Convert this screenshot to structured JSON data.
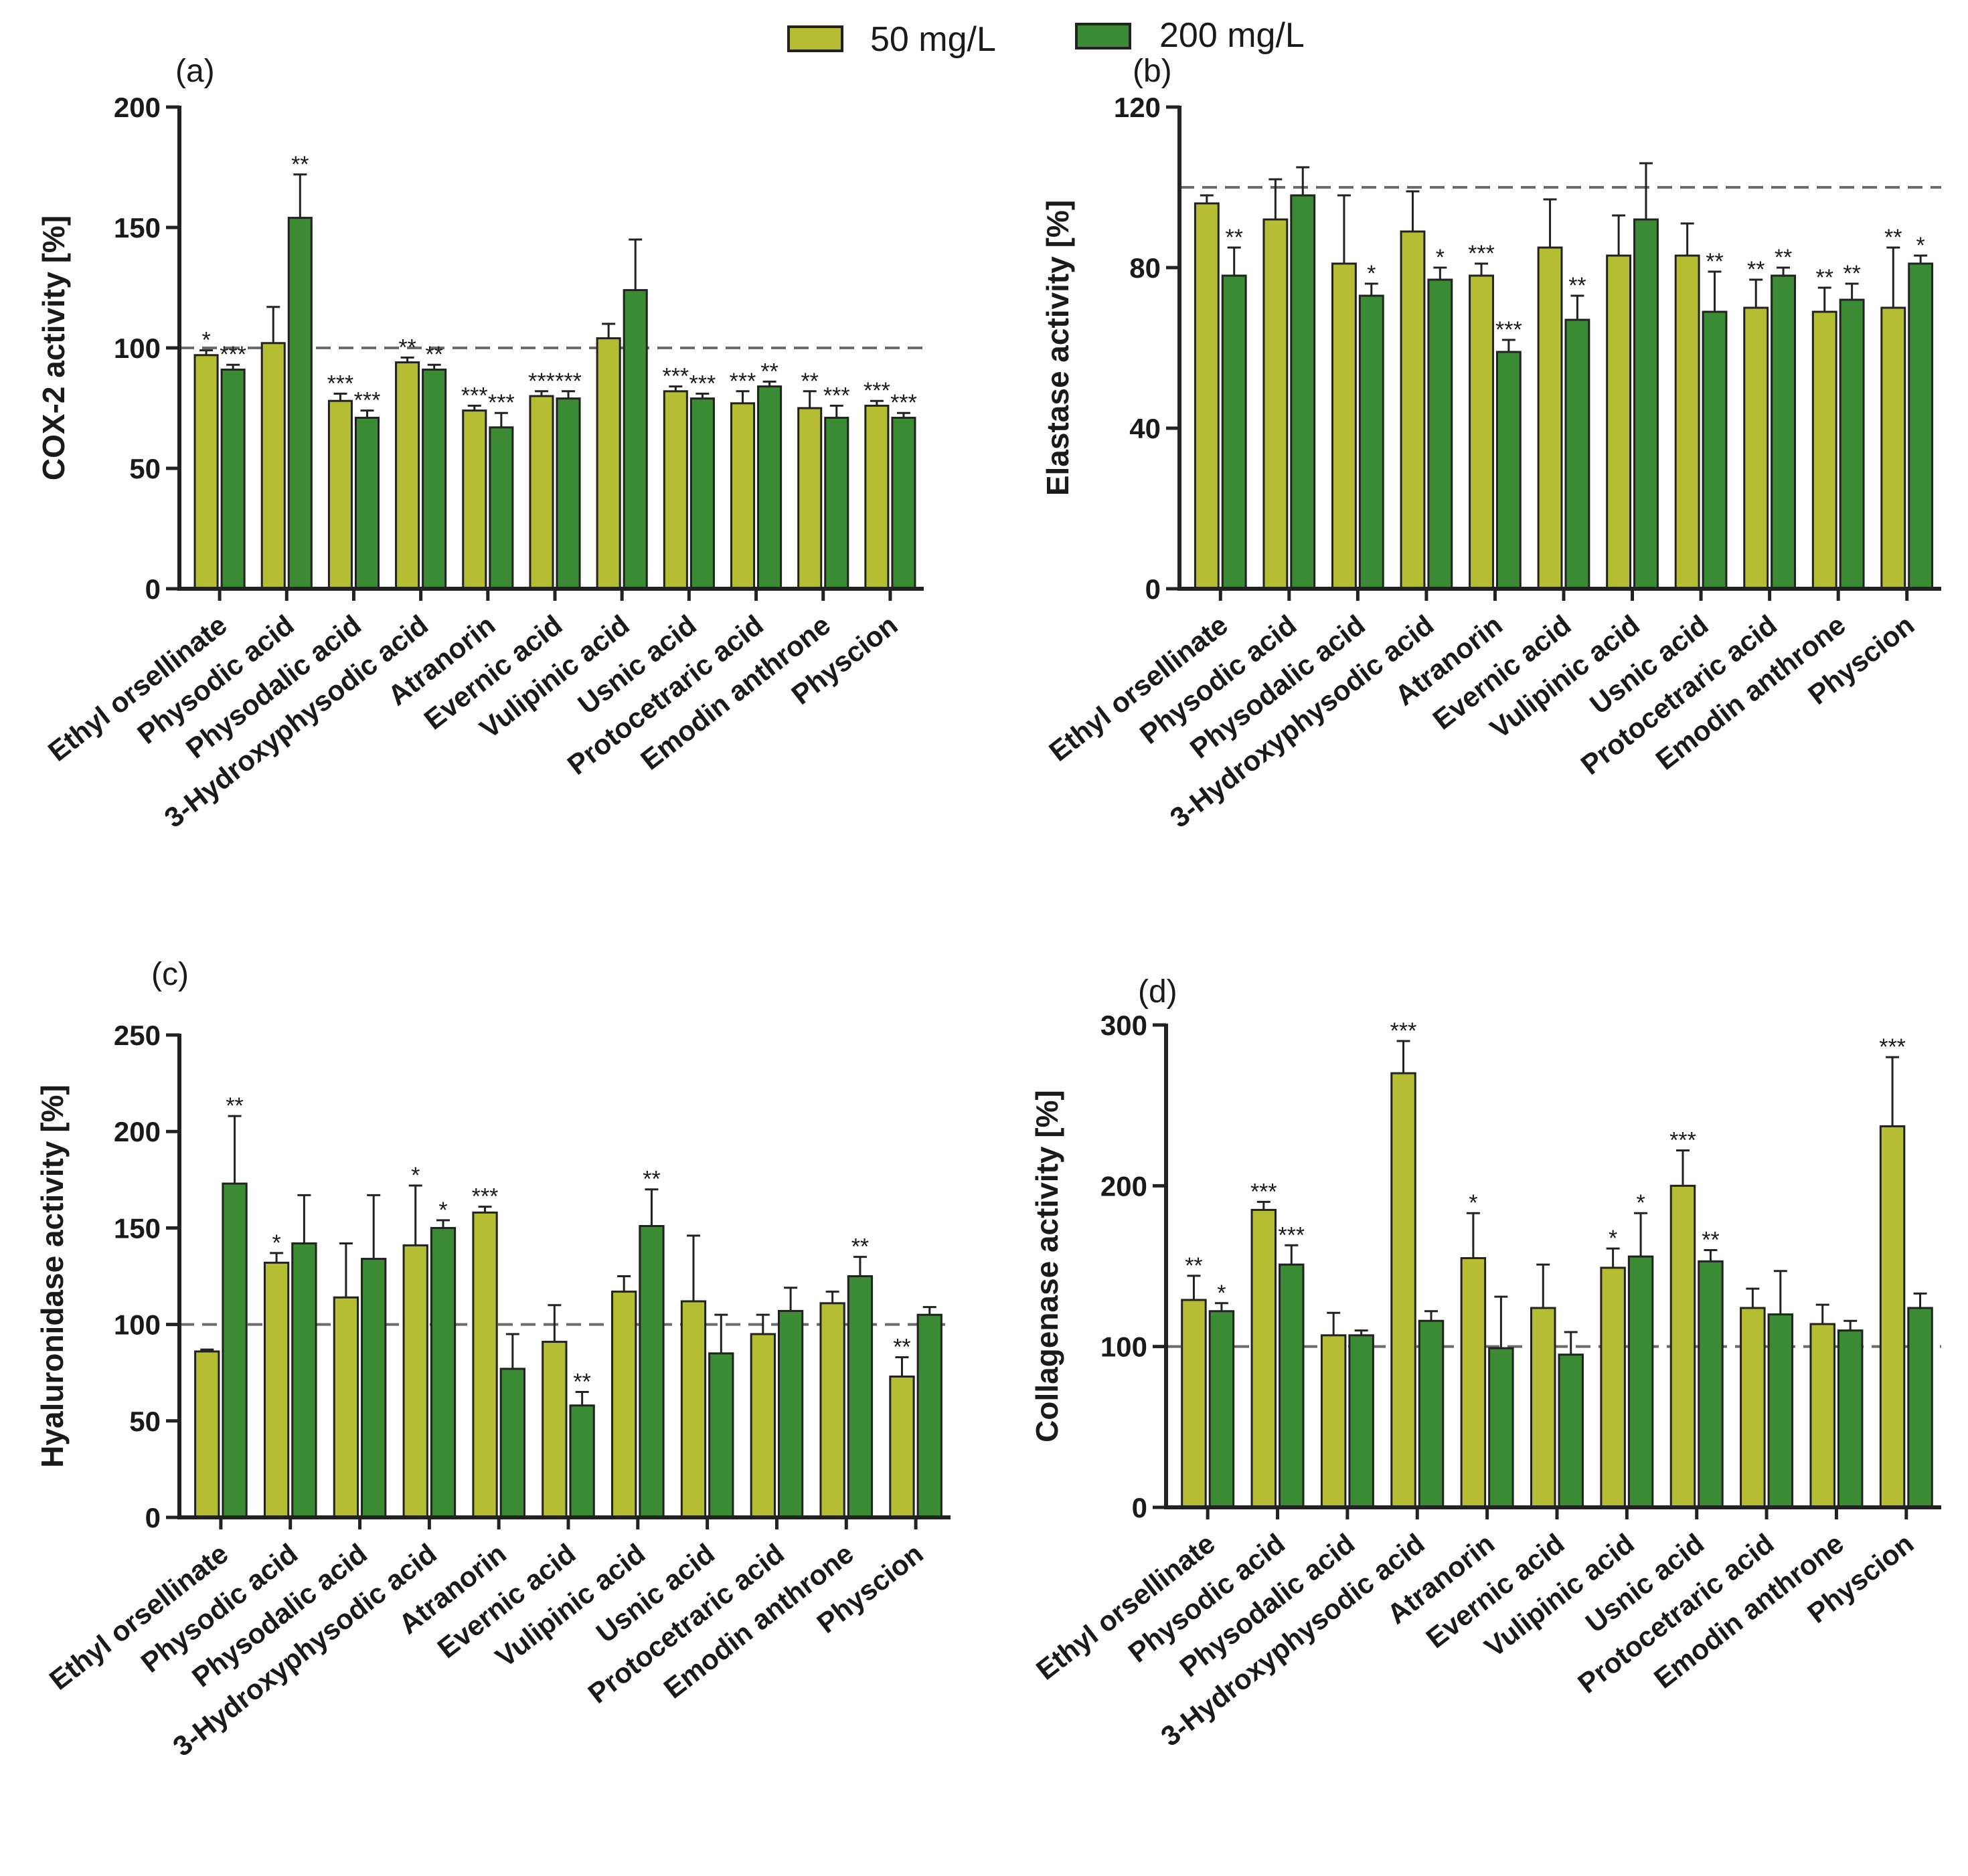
{
  "legend": {
    "items": [
      {
        "label": "50 mg/L",
        "color": "#b5bd32"
      },
      {
        "label": "200 mg/L",
        "color": "#3b8a34"
      }
    ]
  },
  "chart_data": [
    {
      "type": "bar",
      "panel": "(a)",
      "ylabel": "COX-2 activity [%]",
      "ylim": [
        0,
        200
      ],
      "yticks": [
        0,
        50,
        100,
        150,
        200
      ],
      "reference_line": 100,
      "categories": [
        "Ethyl orsellinate",
        "Physodic acid",
        "Physodalic acid",
        "3-Hydroxyphysodic acid",
        "Atranorin",
        "Evernic acid",
        "Vulipinic acid",
        "Usnic acid",
        "Protocetraric acid",
        "Emodin anthrone",
        "Physcion"
      ],
      "series": [
        {
          "name": "50 mg/L",
          "values": [
            97,
            102,
            78,
            94,
            74,
            80,
            104,
            82,
            77,
            75,
            76
          ],
          "errors": [
            2,
            15,
            3,
            2,
            2,
            2,
            6,
            2,
            5,
            7,
            2
          ],
          "significance": [
            "*",
            "",
            "***",
            "**",
            "***",
            "***",
            "",
            "***",
            "***",
            "**",
            "***"
          ]
        },
        {
          "name": "200 mg/L",
          "values": [
            91,
            154,
            71,
            91,
            67,
            79,
            124,
            79,
            84,
            71,
            71
          ],
          "errors": [
            2,
            18,
            3,
            2,
            6,
            3,
            21,
            2,
            2,
            5,
            2
          ],
          "significance": [
            "***",
            "**",
            "***",
            "**",
            "***",
            "***",
            "",
            "***",
            "**",
            "***",
            "***"
          ]
        }
      ]
    },
    {
      "type": "bar",
      "panel": "(b)",
      "ylabel": "Elastase activity [%]",
      "ylim": [
        0,
        120
      ],
      "yticks": [
        0,
        40,
        80,
        120
      ],
      "reference_line": 100,
      "categories": [
        "Ethyl orsellinate",
        "Physodic acid",
        "Physodalic acid",
        "3-Hydroxyphysodic acid",
        "Atranorin",
        "Evernic acid",
        "Vulipinic acid",
        "Usnic acid",
        "Protocetraric acid",
        "Emodin anthrone",
        "Physcion"
      ],
      "series": [
        {
          "name": "50 mg/L",
          "values": [
            96,
            92,
            81,
            89,
            78,
            85,
            83,
            83,
            70,
            69,
            70
          ],
          "errors": [
            2,
            10,
            17,
            10,
            3,
            12,
            10,
            8,
            7,
            6,
            15
          ],
          "significance": [
            "",
            "",
            "",
            "",
            "***",
            "",
            "",
            "",
            "**",
            "**",
            "**"
          ]
        },
        {
          "name": "200 mg/L",
          "values": [
            78,
            98,
            73,
            77,
            59,
            67,
            92,
            69,
            78,
            72,
            81
          ],
          "errors": [
            7,
            7,
            3,
            3,
            3,
            6,
            14,
            10,
            2,
            4,
            2
          ],
          "significance": [
            "**",
            "",
            "*",
            "*",
            "***",
            "**",
            "",
            "**",
            "**",
            "**",
            "*"
          ]
        }
      ]
    },
    {
      "type": "bar",
      "panel": "(c)",
      "ylabel": "Hyaluronidase activity [%]",
      "ylim": [
        0,
        250
      ],
      "yticks": [
        0,
        50,
        100,
        150,
        200,
        250
      ],
      "reference_line": 100,
      "categories": [
        "Ethyl orsellinate",
        "Physodic acid",
        "Physodalic acid",
        "3-Hydroxyphysodic acid",
        "Atranorin",
        "Evernic acid",
        "Vulipinic acid",
        "Usnic acid",
        "Protocetraric acid",
        "Emodin anthrone",
        "Physcion"
      ],
      "series": [
        {
          "name": "50 mg/L",
          "values": [
            86,
            132,
            114,
            141,
            158,
            91,
            117,
            112,
            95,
            111,
            73
          ],
          "errors": [
            1,
            5,
            28,
            31,
            3,
            19,
            8,
            34,
            10,
            6,
            10
          ],
          "significance": [
            "",
            "*",
            "",
            "*",
            "***",
            "",
            "",
            "",
            "",
            "",
            "**"
          ]
        },
        {
          "name": "200 mg/L",
          "values": [
            173,
            142,
            134,
            150,
            77,
            58,
            151,
            85,
            107,
            125,
            105
          ],
          "errors": [
            35,
            25,
            33,
            4,
            18,
            7,
            19,
            20,
            12,
            10,
            4
          ],
          "significance": [
            "**",
            "",
            "",
            "*",
            "",
            "**",
            "**",
            "",
            "",
            "**",
            ""
          ]
        }
      ]
    },
    {
      "type": "bar",
      "panel": "(d)",
      "ylabel": "Collagenase activity [%]",
      "ylim": [
        0,
        300
      ],
      "yticks": [
        0,
        100,
        200,
        300
      ],
      "reference_line": 100,
      "categories": [
        "Ethyl orsellinate",
        "Physodic acid",
        "Physodalic acid",
        "3-Hydroxyphysodic acid",
        "Atranorin",
        "Evernic acid",
        "Vulipinic acid",
        "Usnic acid",
        "Protocetraric acid",
        "Emodin anthrone",
        "Physcion"
      ],
      "series": [
        {
          "name": "50 mg/L",
          "values": [
            129,
            185,
            107,
            270,
            155,
            124,
            149,
            200,
            124,
            114,
            237
          ],
          "errors": [
            15,
            5,
            14,
            20,
            28,
            27,
            12,
            22,
            12,
            12,
            43
          ],
          "significance": [
            "**",
            "***",
            "",
            "***",
            "*",
            "",
            "*",
            "***",
            "",
            "",
            "***"
          ]
        },
        {
          "name": "200 mg/L",
          "values": [
            122,
            151,
            107,
            116,
            99,
            95,
            156,
            153,
            120,
            110,
            124
          ],
          "errors": [
            5,
            12,
            3,
            6,
            32,
            14,
            27,
            7,
            27,
            6,
            9
          ],
          "significance": [
            "*",
            "***",
            "",
            "",
            "",
            "",
            "*",
            "**",
            "",
            "",
            ""
          ]
        }
      ]
    }
  ]
}
